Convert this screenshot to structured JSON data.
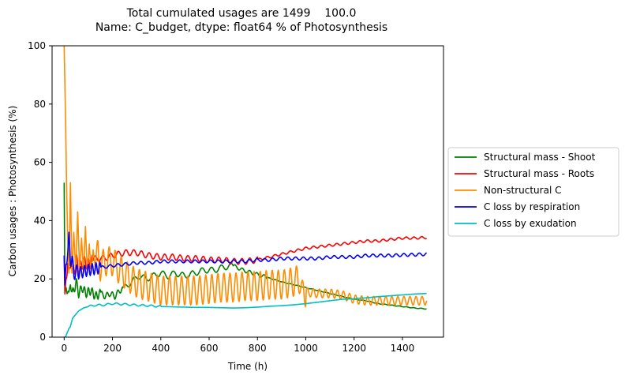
{
  "chart_data": {
    "type": "line",
    "title": "Total cumulated usages are 1499    100.0",
    "subtitle": "Name: C_budget, dtype: float64 % of Photosynthesis",
    "xlabel": "Time (h)",
    "ylabel": "Carbon usages : Photosynthesis (%)",
    "xlim": [
      -50,
      1570
    ],
    "ylim": [
      0,
      100
    ],
    "x_ticks": [
      0,
      200,
      400,
      600,
      800,
      1000,
      1200,
      1400
    ],
    "y_ticks": [
      0,
      20,
      40,
      60,
      80,
      100
    ],
    "grid": false,
    "legend_position": "outside-right",
    "series": [
      {
        "name": "Structural mass - Shoot",
        "color": "#008000",
        "points": [
          [
            0,
            53
          ],
          [
            3,
            14
          ],
          [
            8,
            17
          ],
          [
            15,
            16
          ],
          [
            20,
            14
          ],
          [
            26,
            19
          ],
          [
            33,
            15
          ],
          [
            40,
            16
          ],
          [
            50,
            19
          ],
          [
            60,
            15
          ],
          [
            75,
            17
          ],
          [
            90,
            15
          ],
          [
            110,
            16
          ],
          [
            130,
            14
          ],
          [
            150,
            15
          ],
          [
            170,
            14
          ],
          [
            190,
            15
          ],
          [
            210,
            14
          ],
          [
            230,
            16
          ],
          [
            250,
            17
          ],
          [
            280,
            19
          ],
          [
            310,
            21
          ],
          [
            340,
            20
          ],
          [
            370,
            21
          ],
          [
            400,
            22
          ],
          [
            430,
            21
          ],
          [
            460,
            22
          ],
          [
            500,
            21
          ],
          [
            540,
            22
          ],
          [
            580,
            23
          ],
          [
            620,
            23
          ],
          [
            660,
            24
          ],
          [
            700,
            24.5
          ],
          [
            740,
            23
          ],
          [
            780,
            22
          ],
          [
            820,
            21
          ],
          [
            860,
            20
          ],
          [
            900,
            19
          ],
          [
            950,
            18
          ],
          [
            1000,
            17
          ],
          [
            1050,
            16
          ],
          [
            1100,
            15
          ],
          [
            1150,
            14
          ],
          [
            1200,
            13
          ],
          [
            1250,
            12.5
          ],
          [
            1300,
            11.5
          ],
          [
            1350,
            11
          ],
          [
            1400,
            10.5
          ],
          [
            1450,
            10
          ],
          [
            1500,
            9.7
          ]
        ],
        "oscillate": [
          [
            0,
            150,
            1.5,
            16
          ],
          [
            150,
            240,
            1,
            22
          ],
          [
            240,
            700,
            1,
            40
          ],
          [
            700,
            840,
            0.6,
            30
          ],
          [
            840,
            1500,
            0.1,
            30
          ]
        ]
      },
      {
        "name": "Structural mass - Roots",
        "color": "#ff0000",
        "points": [
          [
            0,
            28
          ],
          [
            3,
            13
          ],
          [
            8,
            20
          ],
          [
            15,
            26
          ],
          [
            20,
            21
          ],
          [
            30,
            28
          ],
          [
            40,
            22
          ],
          [
            50,
            27
          ],
          [
            60,
            23
          ],
          [
            80,
            26
          ],
          [
            100,
            25
          ],
          [
            130,
            27
          ],
          [
            160,
            27
          ],
          [
            200,
            28
          ],
          [
            250,
            29
          ],
          [
            300,
            29
          ],
          [
            350,
            28
          ],
          [
            400,
            27.5
          ],
          [
            450,
            27.5
          ],
          [
            500,
            27
          ],
          [
            550,
            27
          ],
          [
            600,
            26.5
          ],
          [
            650,
            26.5
          ],
          [
            700,
            26
          ],
          [
            750,
            26
          ],
          [
            800,
            26.5
          ],
          [
            850,
            27.5
          ],
          [
            900,
            28.5
          ],
          [
            950,
            29.5
          ],
          [
            1000,
            30.5
          ],
          [
            1050,
            31
          ],
          [
            1100,
            31.5
          ],
          [
            1150,
            32
          ],
          [
            1200,
            32.5
          ],
          [
            1250,
            33
          ],
          [
            1300,
            33
          ],
          [
            1350,
            33.5
          ],
          [
            1400,
            34
          ],
          [
            1450,
            34
          ],
          [
            1500,
            34.2
          ]
        ],
        "oscillate": [
          [
            0,
            120,
            2,
            16
          ],
          [
            120,
            800,
            1,
            32
          ],
          [
            800,
            1500,
            0.4,
            32
          ]
        ]
      },
      {
        "name": "Non-structural C",
        "color": "#ff8c00",
        "points": [
          [
            0,
            100
          ],
          [
            6,
            74
          ],
          [
            10,
            52
          ],
          [
            14,
            36
          ],
          [
            20,
            22
          ],
          [
            26,
            53
          ],
          [
            32,
            22
          ],
          [
            40,
            36
          ],
          [
            48,
            22
          ],
          [
            56,
            43
          ],
          [
            64,
            22
          ],
          [
            72,
            34
          ],
          [
            80,
            22
          ],
          [
            88,
            38
          ],
          [
            96,
            22
          ],
          [
            104,
            32
          ],
          [
            112,
            22
          ],
          [
            120,
            30
          ],
          [
            130,
            23
          ],
          [
            140,
            30
          ],
          [
            150,
            24
          ],
          [
            170,
            26
          ],
          [
            200,
            26
          ],
          [
            230,
            23
          ],
          [
            260,
            21
          ],
          [
            290,
            19
          ],
          [
            320,
            18
          ],
          [
            360,
            17
          ],
          [
            400,
            16
          ],
          [
            450,
            16
          ],
          [
            500,
            16
          ],
          [
            550,
            16
          ],
          [
            600,
            16.5
          ],
          [
            650,
            17
          ],
          [
            700,
            17
          ],
          [
            750,
            17.5
          ],
          [
            800,
            17.5
          ],
          [
            850,
            18
          ],
          [
            900,
            18
          ],
          [
            950,
            19
          ],
          [
            975,
            20
          ],
          [
            985,
            14.5
          ],
          [
            1000,
            15.5
          ],
          [
            1050,
            15
          ],
          [
            1100,
            15
          ],
          [
            1150,
            14.5
          ],
          [
            1200,
            13
          ],
          [
            1250,
            12.5
          ],
          [
            1300,
            12.5
          ],
          [
            1350,
            12.5
          ],
          [
            1400,
            12.5
          ],
          [
            1450,
            12.5
          ],
          [
            1500,
            12.5
          ]
        ],
        "oscillate": [
          [
            130,
            1000,
            5,
            25
          ],
          [
            1000,
            1500,
            1.5,
            25
          ]
        ]
      },
      {
        "name": "C loss by respiration",
        "color": "#0000ff",
        "points": [
          [
            0,
            28
          ],
          [
            3,
            16
          ],
          [
            8,
            25
          ],
          [
            15,
            30
          ],
          [
            20,
            34
          ],
          [
            26,
            26
          ],
          [
            33,
            27
          ],
          [
            40,
            21
          ],
          [
            50,
            23
          ],
          [
            60,
            22
          ],
          [
            80,
            22.5
          ],
          [
            100,
            23
          ],
          [
            130,
            23.5
          ],
          [
            160,
            24
          ],
          [
            200,
            24.5
          ],
          [
            250,
            25
          ],
          [
            300,
            25.5
          ],
          [
            350,
            25.5
          ],
          [
            400,
            26
          ],
          [
            450,
            26
          ],
          [
            500,
            26
          ],
          [
            550,
            26
          ],
          [
            600,
            26
          ],
          [
            650,
            26
          ],
          [
            700,
            26
          ],
          [
            750,
            26
          ],
          [
            800,
            26.5
          ],
          [
            850,
            26.5
          ],
          [
            900,
            27
          ],
          [
            950,
            27
          ],
          [
            1000,
            27
          ],
          [
            1050,
            27
          ],
          [
            1100,
            27.5
          ],
          [
            1150,
            27.5
          ],
          [
            1200,
            27.5
          ],
          [
            1250,
            28
          ],
          [
            1300,
            28
          ],
          [
            1350,
            28
          ],
          [
            1400,
            28.2
          ],
          [
            1450,
            28.3
          ],
          [
            1500,
            28.5
          ]
        ],
        "oscillate": [
          [
            0,
            150,
            2,
            16
          ],
          [
            150,
            1500,
            0.5,
            32
          ]
        ]
      },
      {
        "name": "C loss by exudation",
        "color": "#00bfbf",
        "points": [
          [
            0,
            0
          ],
          [
            5,
            0
          ],
          [
            10,
            1
          ],
          [
            15,
            2
          ],
          [
            20,
            3
          ],
          [
            25,
            3.5
          ],
          [
            30,
            5
          ],
          [
            35,
            6.5
          ],
          [
            40,
            7
          ],
          [
            50,
            8
          ],
          [
            60,
            9
          ],
          [
            70,
            9.5
          ],
          [
            80,
            10
          ],
          [
            100,
            10.5
          ],
          [
            130,
            11
          ],
          [
            160,
            11
          ],
          [
            200,
            11.5
          ],
          [
            250,
            11.3
          ],
          [
            300,
            11
          ],
          [
            350,
            10.8
          ],
          [
            400,
            10.5
          ],
          [
            450,
            10.4
          ],
          [
            500,
            10.3
          ],
          [
            550,
            10.2
          ],
          [
            600,
            10.2
          ],
          [
            650,
            10.1
          ],
          [
            700,
            10
          ],
          [
            750,
            10.1
          ],
          [
            800,
            10.3
          ],
          [
            850,
            10.6
          ],
          [
            900,
            10.8
          ],
          [
            950,
            11.1
          ],
          [
            1000,
            11.5
          ],
          [
            1050,
            12
          ],
          [
            1100,
            12.5
          ],
          [
            1150,
            13
          ],
          [
            1200,
            13.2
          ],
          [
            1250,
            13.5
          ],
          [
            1300,
            13.9
          ],
          [
            1350,
            14.2
          ],
          [
            1400,
            14.5
          ],
          [
            1450,
            14.8
          ],
          [
            1500,
            15
          ]
        ],
        "oscillate": [
          [
            100,
            400,
            0.3,
            36
          ]
        ]
      }
    ]
  }
}
